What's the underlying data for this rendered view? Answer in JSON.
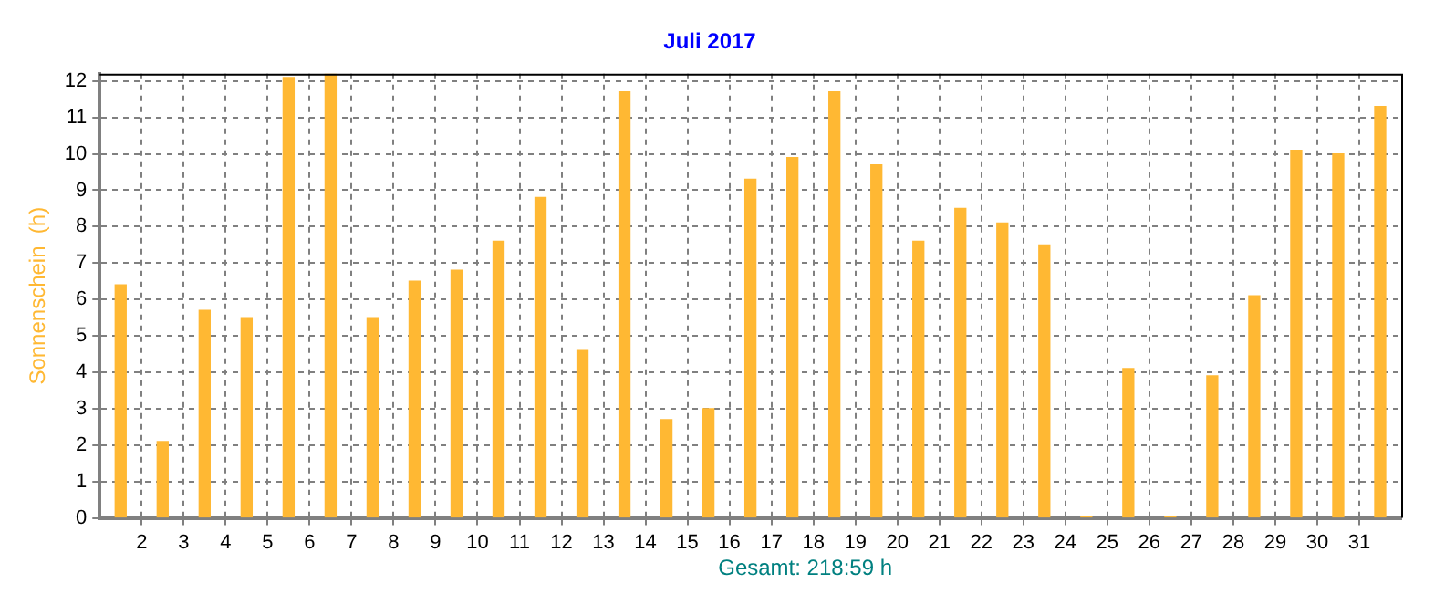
{
  "chart_data": {
    "type": "bar",
    "title": "Juli 2017",
    "ylabel": "Sonnenschein  (h)",
    "x": [
      1.5,
      2.5,
      3.5,
      4.5,
      5.5,
      6.5,
      7.5,
      8.5,
      9.5,
      10.5,
      11.5,
      12.5,
      13.5,
      14.5,
      15.5,
      16.5,
      17.5,
      18.5,
      19.5,
      20.5,
      21.5,
      22.5,
      23.5,
      24.5,
      25.5,
      26.5,
      27.5,
      28.5,
      29.5,
      30.5,
      31.5
    ],
    "values": [
      6.4,
      2.1,
      5.7,
      5.5,
      12.1,
      12.2,
      5.5,
      6.5,
      6.8,
      7.6,
      8.8,
      4.6,
      11.7,
      2.7,
      3.0,
      9.3,
      9.9,
      11.7,
      9.7,
      7.6,
      8.5,
      8.1,
      7.5,
      0.05,
      4.1,
      0.03,
      3.9,
      6.1,
      10.1,
      10.0,
      11.3
    ],
    "color": "#ffb833",
    "xlim": [
      1,
      32
    ],
    "xticks": [
      2,
      3,
      4,
      5,
      6,
      7,
      8,
      9,
      10,
      11,
      12,
      13,
      14,
      15,
      16,
      17,
      18,
      19,
      20,
      21,
      22,
      23,
      24,
      25,
      26,
      27,
      28,
      29,
      30,
      31
    ],
    "ylim": [
      0,
      12.2
    ],
    "yticks": [
      0,
      1,
      2,
      3,
      4,
      5,
      6,
      7,
      8,
      9,
      10,
      11,
      12
    ],
    "grid": true,
    "line_style": "dashed",
    "annotations": [
      "Gesamt: 218:59 h"
    ]
  }
}
